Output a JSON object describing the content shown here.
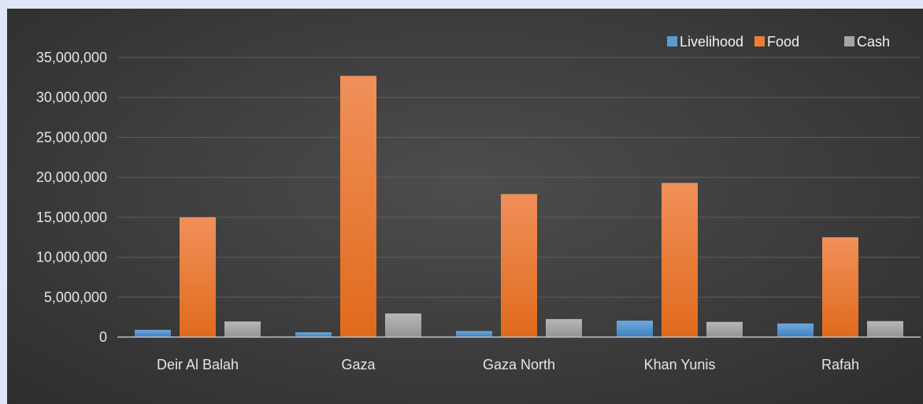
{
  "chart_data": {
    "type": "bar",
    "title": "",
    "xlabel": "",
    "ylabel": "",
    "categories": [
      "Deir Al Balah",
      "Gaza",
      "Gaza North",
      "Khan Yunis",
      "Rafah"
    ],
    "series": [
      {
        "name": "Livelihood",
        "values": [
          900000,
          600000,
          750000,
          2050000,
          1700000
        ],
        "color": "#5b9bd5"
      },
      {
        "name": "Food",
        "values": [
          15000000,
          32700000,
          17900000,
          19300000,
          12500000
        ],
        "color": "#ed7d31"
      },
      {
        "name": "Cash",
        "values": [
          1950000,
          2950000,
          2250000,
          1900000,
          2000000
        ],
        "color": "#a5a5a5"
      }
    ],
    "ylim": [
      0,
      35000000
    ],
    "yticks": [
      0,
      5000000,
      10000000,
      15000000,
      20000000,
      25000000,
      30000000,
      35000000
    ],
    "ytick_labels": [
      "0",
      "5,000,000",
      "10,000,000",
      "15,000,000",
      "20,000,000",
      "25,000,000",
      "30,000,000",
      "35,000,000"
    ],
    "grid": true,
    "legend_position": "top-right"
  },
  "colors": {
    "page_background": "#dde7f6",
    "plot_background": "#404040",
    "gridline": "#5e5e5e",
    "axis_line": "#bfbfbf",
    "text": "#e6e6e6"
  }
}
